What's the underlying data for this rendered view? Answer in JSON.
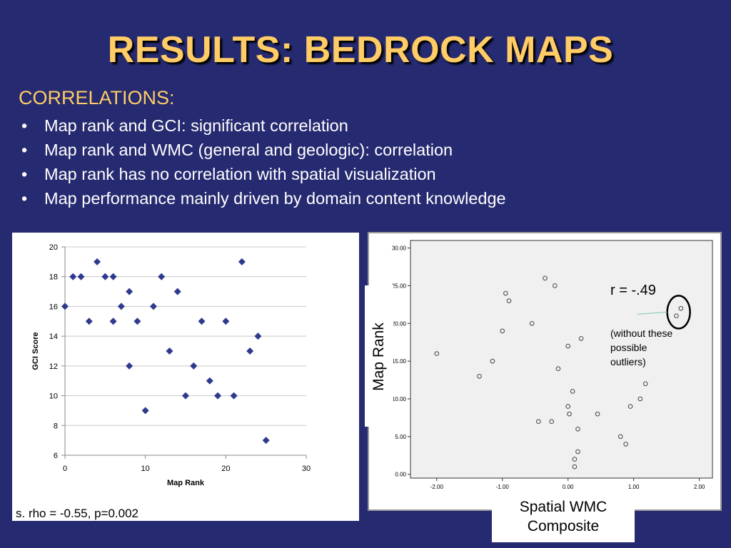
{
  "slide": {
    "title": "RESULTS: BEDROCK MAPS",
    "subhead": "CORRELATIONS:",
    "bullet_symbol": "•",
    "bullets": [
      "Map rank and GCI: significant  correlation",
      "Map rank and WMC (general and geologic):  correlation",
      "Map rank has no correlation with spatial visualization",
      "Map performance mainly driven by domain content knowledge"
    ],
    "rho_text": "s. rho = -0.55, p=0.002",
    "right_ylabel": "Map Rank",
    "r_text": "r = -.49",
    "note_lines": [
      "(without these",
      "possible",
      "outliers)"
    ],
    "right_xlabel_lines": [
      "Spatial WMC",
      "Composite"
    ]
  },
  "colors": {
    "background": "#262a70",
    "title": "#ffcc66",
    "left_marker": "#2e3a8c",
    "right_plot_bg": "#f0f0f0"
  },
  "chart_data": [
    {
      "type": "scatter",
      "marker": "diamond",
      "xlabel": "Map Rank",
      "ylabel": "GCI Score",
      "xlim": [
        0,
        30
      ],
      "ylim": [
        6,
        20
      ],
      "xticks": [
        0,
        10,
        20,
        30
      ],
      "yticks": [
        6,
        8,
        10,
        12,
        14,
        16,
        18,
        20
      ],
      "grid": "horizontal",
      "points": [
        [
          0,
          16
        ],
        [
          1,
          18
        ],
        [
          2,
          18
        ],
        [
          3,
          15
        ],
        [
          4,
          19
        ],
        [
          5,
          18
        ],
        [
          6,
          18
        ],
        [
          6,
          15
        ],
        [
          7,
          16
        ],
        [
          8,
          17
        ],
        [
          8,
          12
        ],
        [
          9,
          15
        ],
        [
          10,
          9
        ],
        [
          11,
          16
        ],
        [
          12,
          18
        ],
        [
          13,
          13
        ],
        [
          14,
          17
        ],
        [
          15,
          10
        ],
        [
          16,
          12
        ],
        [
          17,
          15
        ],
        [
          18,
          11
        ],
        [
          19,
          10
        ],
        [
          20,
          15
        ],
        [
          21,
          10
        ],
        [
          22,
          19
        ],
        [
          23,
          13
        ],
        [
          24,
          14
        ],
        [
          25,
          7
        ]
      ]
    },
    {
      "type": "scatter",
      "marker": "open-circle",
      "xlim": [
        -2.4,
        2.2
      ],
      "ylim": [
        -0.5,
        31
      ],
      "xticks": [
        -2,
        -1,
        0,
        1,
        2
      ],
      "xtick_labels": [
        "-2.00",
        "-1.00",
        "0.00",
        "1.00",
        "2.00"
      ],
      "yticks": [
        0,
        5,
        10,
        15,
        20,
        25,
        30
      ],
      "ytick_labels": [
        "0.00",
        "5.00",
        "10.00",
        "15.00",
        "20.00",
        "25.00",
        "30.00"
      ],
      "grid": "none",
      "points": [
        [
          -2.0,
          16
        ],
        [
          -1.35,
          13
        ],
        [
          -1.15,
          15
        ],
        [
          -1.0,
          19
        ],
        [
          -0.95,
          24
        ],
        [
          -0.9,
          23
        ],
        [
          -0.55,
          20
        ],
        [
          -0.45,
          7
        ],
        [
          -0.35,
          26
        ],
        [
          -0.25,
          7
        ],
        [
          -0.2,
          25
        ],
        [
          -0.15,
          14
        ],
        [
          0.0,
          17
        ],
        [
          0.0,
          9
        ],
        [
          0.02,
          8
        ],
        [
          0.07,
          11
        ],
        [
          0.1,
          2
        ],
        [
          0.1,
          1
        ],
        [
          0.15,
          3
        ],
        [
          0.15,
          6
        ],
        [
          0.2,
          18
        ],
        [
          0.45,
          8
        ],
        [
          0.8,
          5
        ],
        [
          0.88,
          4
        ],
        [
          0.95,
          9
        ],
        [
          1.1,
          10
        ],
        [
          1.18,
          12
        ],
        [
          1.65,
          21
        ],
        [
          1.72,
          22
        ]
      ],
      "circled_points": [
        [
          1.65,
          21
        ],
        [
          1.72,
          22
        ]
      ]
    }
  ]
}
